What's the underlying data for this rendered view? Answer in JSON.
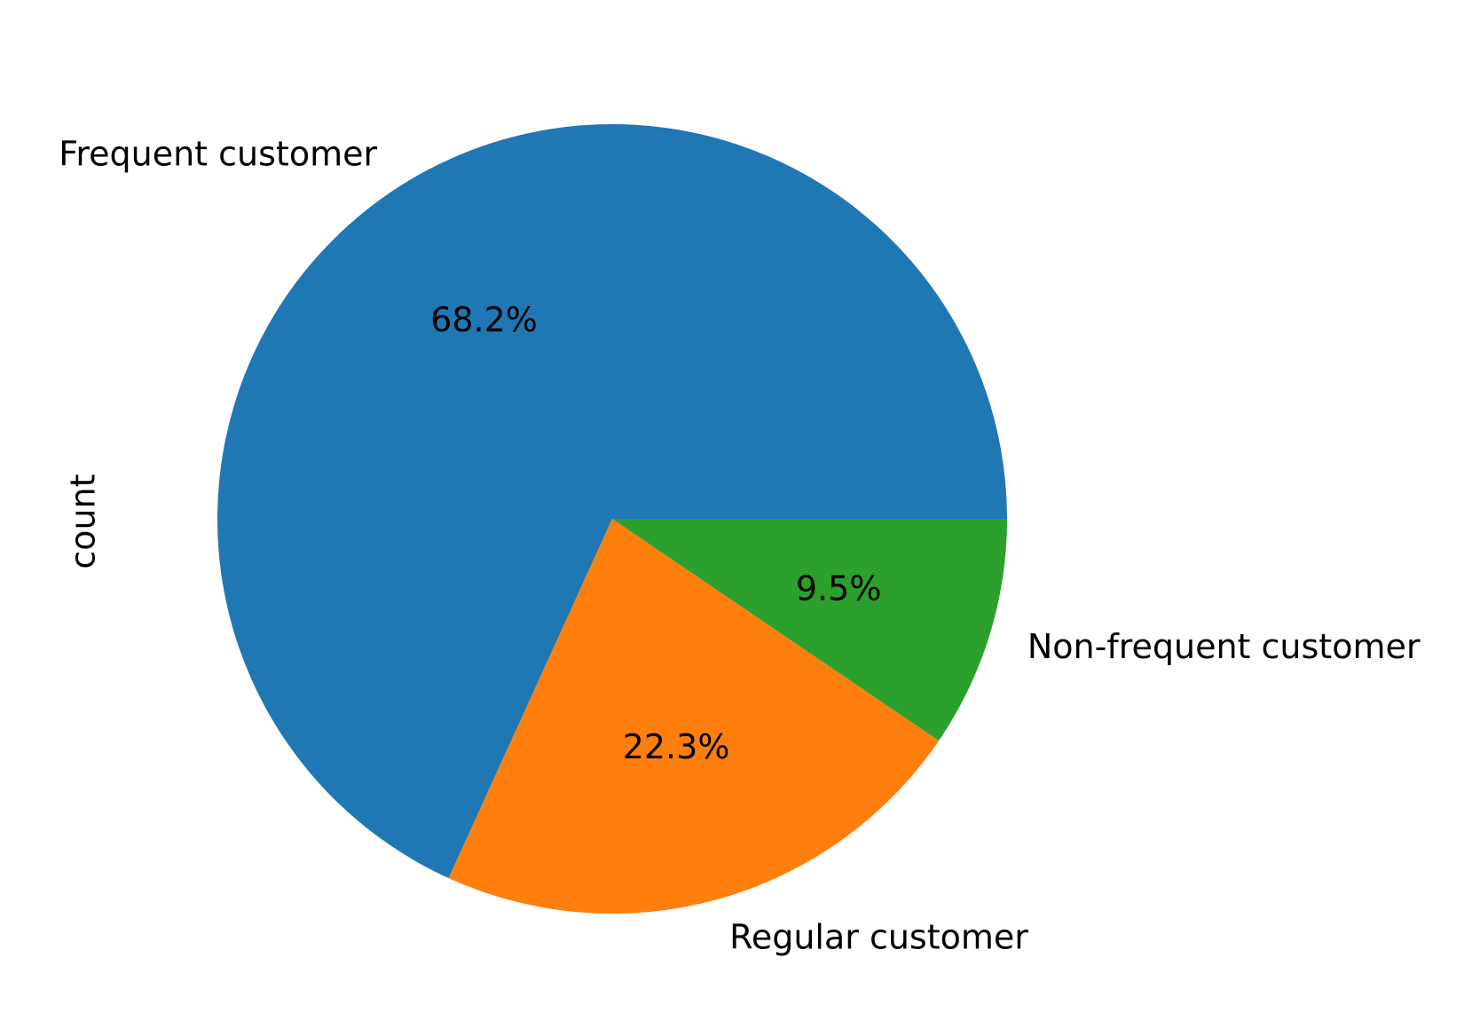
{
  "chart_data": {
    "type": "pie",
    "ylabel": "count",
    "start_angle_deg": 0,
    "direction": "counterclockwise",
    "slices": [
      {
        "label": "Frequent customer",
        "percent": 68.2,
        "percent_label": "68.2%",
        "color": "#1f77b4"
      },
      {
        "label": "Regular customer",
        "percent": 22.3,
        "percent_label": "22.3%",
        "color": "#ff7f0e"
      },
      {
        "label": "Non-frequent customer",
        "percent": 9.5,
        "percent_label": "9.5%",
        "color": "#2ca02c"
      }
    ]
  }
}
